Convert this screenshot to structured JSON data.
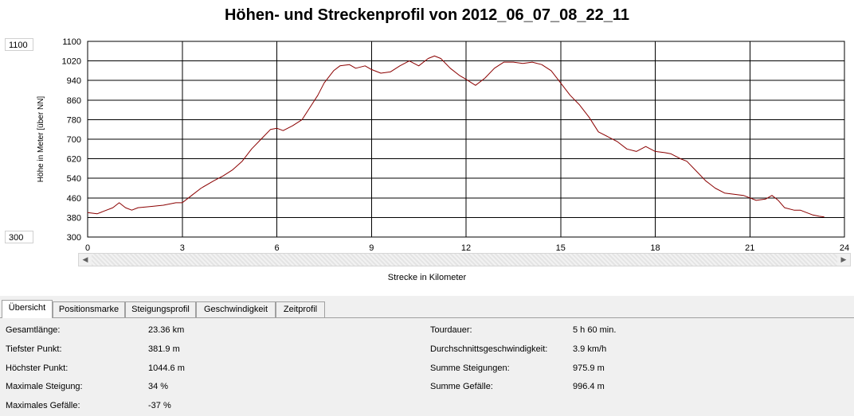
{
  "title": "Höhen- und Streckenprofil von 2012_06_07_08_22_11",
  "range_max": "1100",
  "range_min": "300",
  "chart_data": {
    "type": "line",
    "title": "Höhen- und Streckenprofil von 2012_06_07_08_22_11",
    "xlabel": "Strecke in Kilometer",
    "ylabel": "Höhe in Meter [über NN]",
    "xlim": [
      0,
      24
    ],
    "ylim": [
      300,
      1100
    ],
    "xticks": [
      "0",
      "3",
      "6",
      "9",
      "12",
      "15",
      "18",
      "21",
      "24"
    ],
    "yticks": [
      "1100",
      "1020",
      "940",
      "860",
      "780",
      "700",
      "620",
      "540",
      "460",
      "380",
      "300"
    ],
    "grid": true,
    "line_color": "#8b0000",
    "series": [
      {
        "x": [
          0,
          0.3,
          0.5,
          0.8,
          1.0,
          1.2,
          1.4,
          1.6,
          2.0,
          2.4,
          2.8,
          3.0,
          3.3,
          3.6,
          4.0,
          4.3,
          4.6,
          4.9,
          5.2,
          5.5,
          5.8,
          6.0,
          6.2,
          6.5,
          6.8,
          7.0,
          7.3,
          7.5,
          7.8,
          8.0,
          8.3,
          8.5,
          8.8,
          9.0,
          9.3,
          9.6,
          9.9,
          10.2,
          10.5,
          10.8,
          11.0,
          11.2,
          11.5,
          11.8,
          12.0,
          12.3,
          12.6,
          12.9,
          13.2,
          13.5,
          13.8,
          14.1,
          14.4,
          14.7,
          15.0,
          15.3,
          15.6,
          15.9,
          16.2,
          16.5,
          16.8,
          17.1,
          17.4,
          17.7,
          18.0,
          18.3,
          18.5,
          18.8,
          19.0,
          19.3,
          19.6,
          19.9,
          20.2,
          20.5,
          20.8,
          21.0,
          21.2,
          21.5,
          21.7,
          21.9,
          22.1,
          22.4,
          22.6,
          22.8,
          23.0,
          23.2,
          23.36
        ],
        "y": [
          400,
          395,
          405,
          420,
          440,
          420,
          410,
          420,
          425,
          430,
          440,
          440,
          470,
          500,
          530,
          550,
          575,
          610,
          660,
          700,
          740,
          745,
          735,
          755,
          780,
          820,
          880,
          930,
          980,
          1000,
          1005,
          990,
          1000,
          985,
          970,
          975,
          1000,
          1020,
          1000,
          1030,
          1040,
          1030,
          990,
          960,
          945,
          920,
          950,
          990,
          1015,
          1015,
          1010,
          1015,
          1005,
          980,
          930,
          880,
          840,
          790,
          730,
          710,
          690,
          660,
          650,
          670,
          650,
          645,
          640,
          620,
          610,
          570,
          530,
          500,
          480,
          475,
          470,
          460,
          450,
          455,
          470,
          450,
          420,
          410,
          410,
          400,
          390,
          385,
          382
        ]
      }
    ]
  },
  "tabs": [
    {
      "label": "Übersicht",
      "active": true
    },
    {
      "label": "Positionsmarke",
      "active": false
    },
    {
      "label": "Steigungsprofil",
      "active": false
    },
    {
      "label": "Geschwindigkeit",
      "active": false
    },
    {
      "label": "Zeitprofil",
      "active": false
    }
  ],
  "stats_left": [
    {
      "label": "Gesamtlänge:",
      "value": "23.36 km"
    },
    {
      "label": "Tiefster Punkt:",
      "value": "381.9 m"
    },
    {
      "label": "Höchster Punkt:",
      "value": "1044.6 m"
    },
    {
      "label": "Maximale Steigung:",
      "value": "34 %"
    },
    {
      "label": "Maximales Gefälle:",
      "value": "-37 %"
    }
  ],
  "stats_right": [
    {
      "label": "Tourdauer:",
      "value": "5 h 60 min."
    },
    {
      "label": "Durchschnittsgeschwindigkeit:",
      "value": "3.9 km/h"
    },
    {
      "label": "Summe Steigungen:",
      "value": "975.9 m"
    },
    {
      "label": "Summe Gefälle:",
      "value": "996.4 m"
    }
  ],
  "icons": {
    "scroll_left": "scroll-left-arrow-icon",
    "scroll_right": "scroll-right-arrow-icon"
  }
}
